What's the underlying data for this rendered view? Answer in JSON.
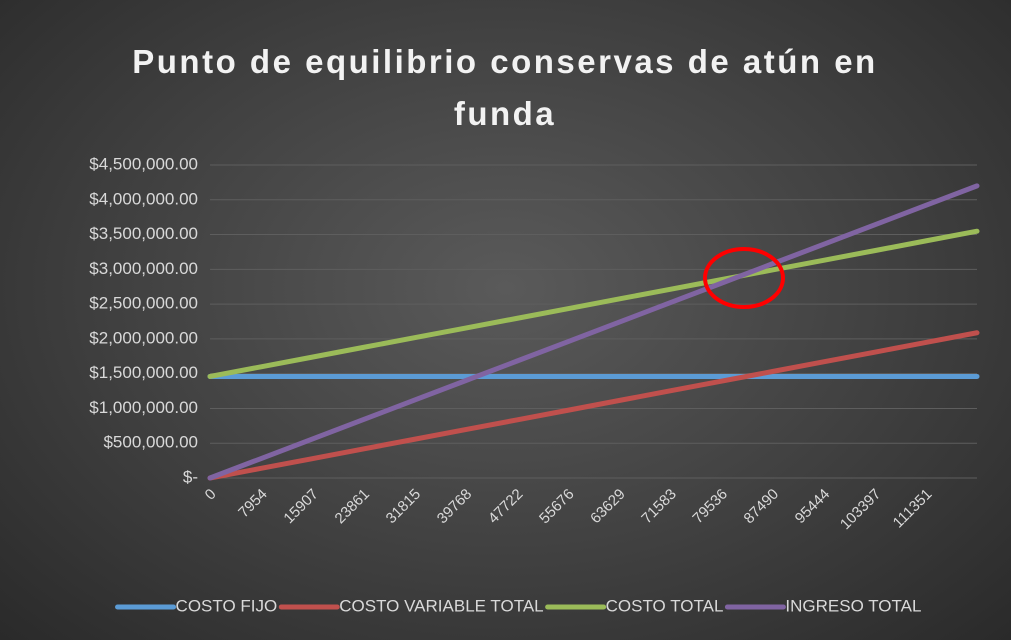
{
  "chart_data": {
    "type": "line",
    "title": "Punto de equilibrio conservas de atún en funda",
    "categories": [
      "0",
      "7954",
      "15907",
      "23861",
      "31815",
      "39768",
      "47722",
      "55676",
      "63629",
      "71583",
      "79536",
      "87490",
      "95444",
      "103397",
      "111351",
      null
    ],
    "series": [
      {
        "name": "COSTO FIJO",
        "color": "#5b9bd5",
        "values": [
          1460000,
          1460000,
          1460000,
          1460000,
          1460000,
          1460000,
          1460000,
          1460000,
          1460000,
          1460000,
          1460000,
          1460000,
          1460000,
          1460000,
          1460000,
          1460000
        ]
      },
      {
        "name": "COSTO VARIABLE TOTAL",
        "color": "#c0504d",
        "values": [
          0,
          139000,
          278000,
          418000,
          557000,
          696000,
          835000,
          974000,
          1114000,
          1253000,
          1392000,
          1531000,
          1670000,
          1809000,
          1949000,
          2088000
        ]
      },
      {
        "name": "COSTO TOTAL",
        "color": "#9bbb59",
        "values": [
          1460000,
          1599000,
          1738000,
          1878000,
          2017000,
          2156000,
          2295000,
          2434000,
          2574000,
          2713000,
          2852000,
          2991000,
          3130000,
          3269000,
          3409000,
          3548000
        ]
      },
      {
        "name": "INGRESO TOTAL",
        "color": "#8064a2",
        "values": [
          0,
          280000,
          560000,
          840000,
          1120000,
          1400000,
          1680000,
          1960000,
          2240000,
          2520000,
          2800000,
          3080000,
          3360000,
          3640000,
          3920000,
          4200000
        ]
      }
    ],
    "ylim": [
      0,
      4500000
    ],
    "yticks": [
      {
        "value": 0,
        "label": "$-"
      },
      {
        "value": 500000,
        "label": "$500,000.00"
      },
      {
        "value": 1000000,
        "label": "$1,000,000.00"
      },
      {
        "value": 1500000,
        "label": "$1,500,000.00"
      },
      {
        "value": 2000000,
        "label": "$2,000,000.00"
      },
      {
        "value": 2500000,
        "label": "$2,500,000.00"
      },
      {
        "value": 3000000,
        "label": "$3,000,000.00"
      },
      {
        "value": 3500000,
        "label": "$3,500,000.00"
      },
      {
        "value": 4000000,
        "label": "$4,000,000.00"
      },
      {
        "value": 4500000,
        "label": "$4,500,000.00"
      }
    ],
    "grid": true,
    "legend": "bottom"
  }
}
